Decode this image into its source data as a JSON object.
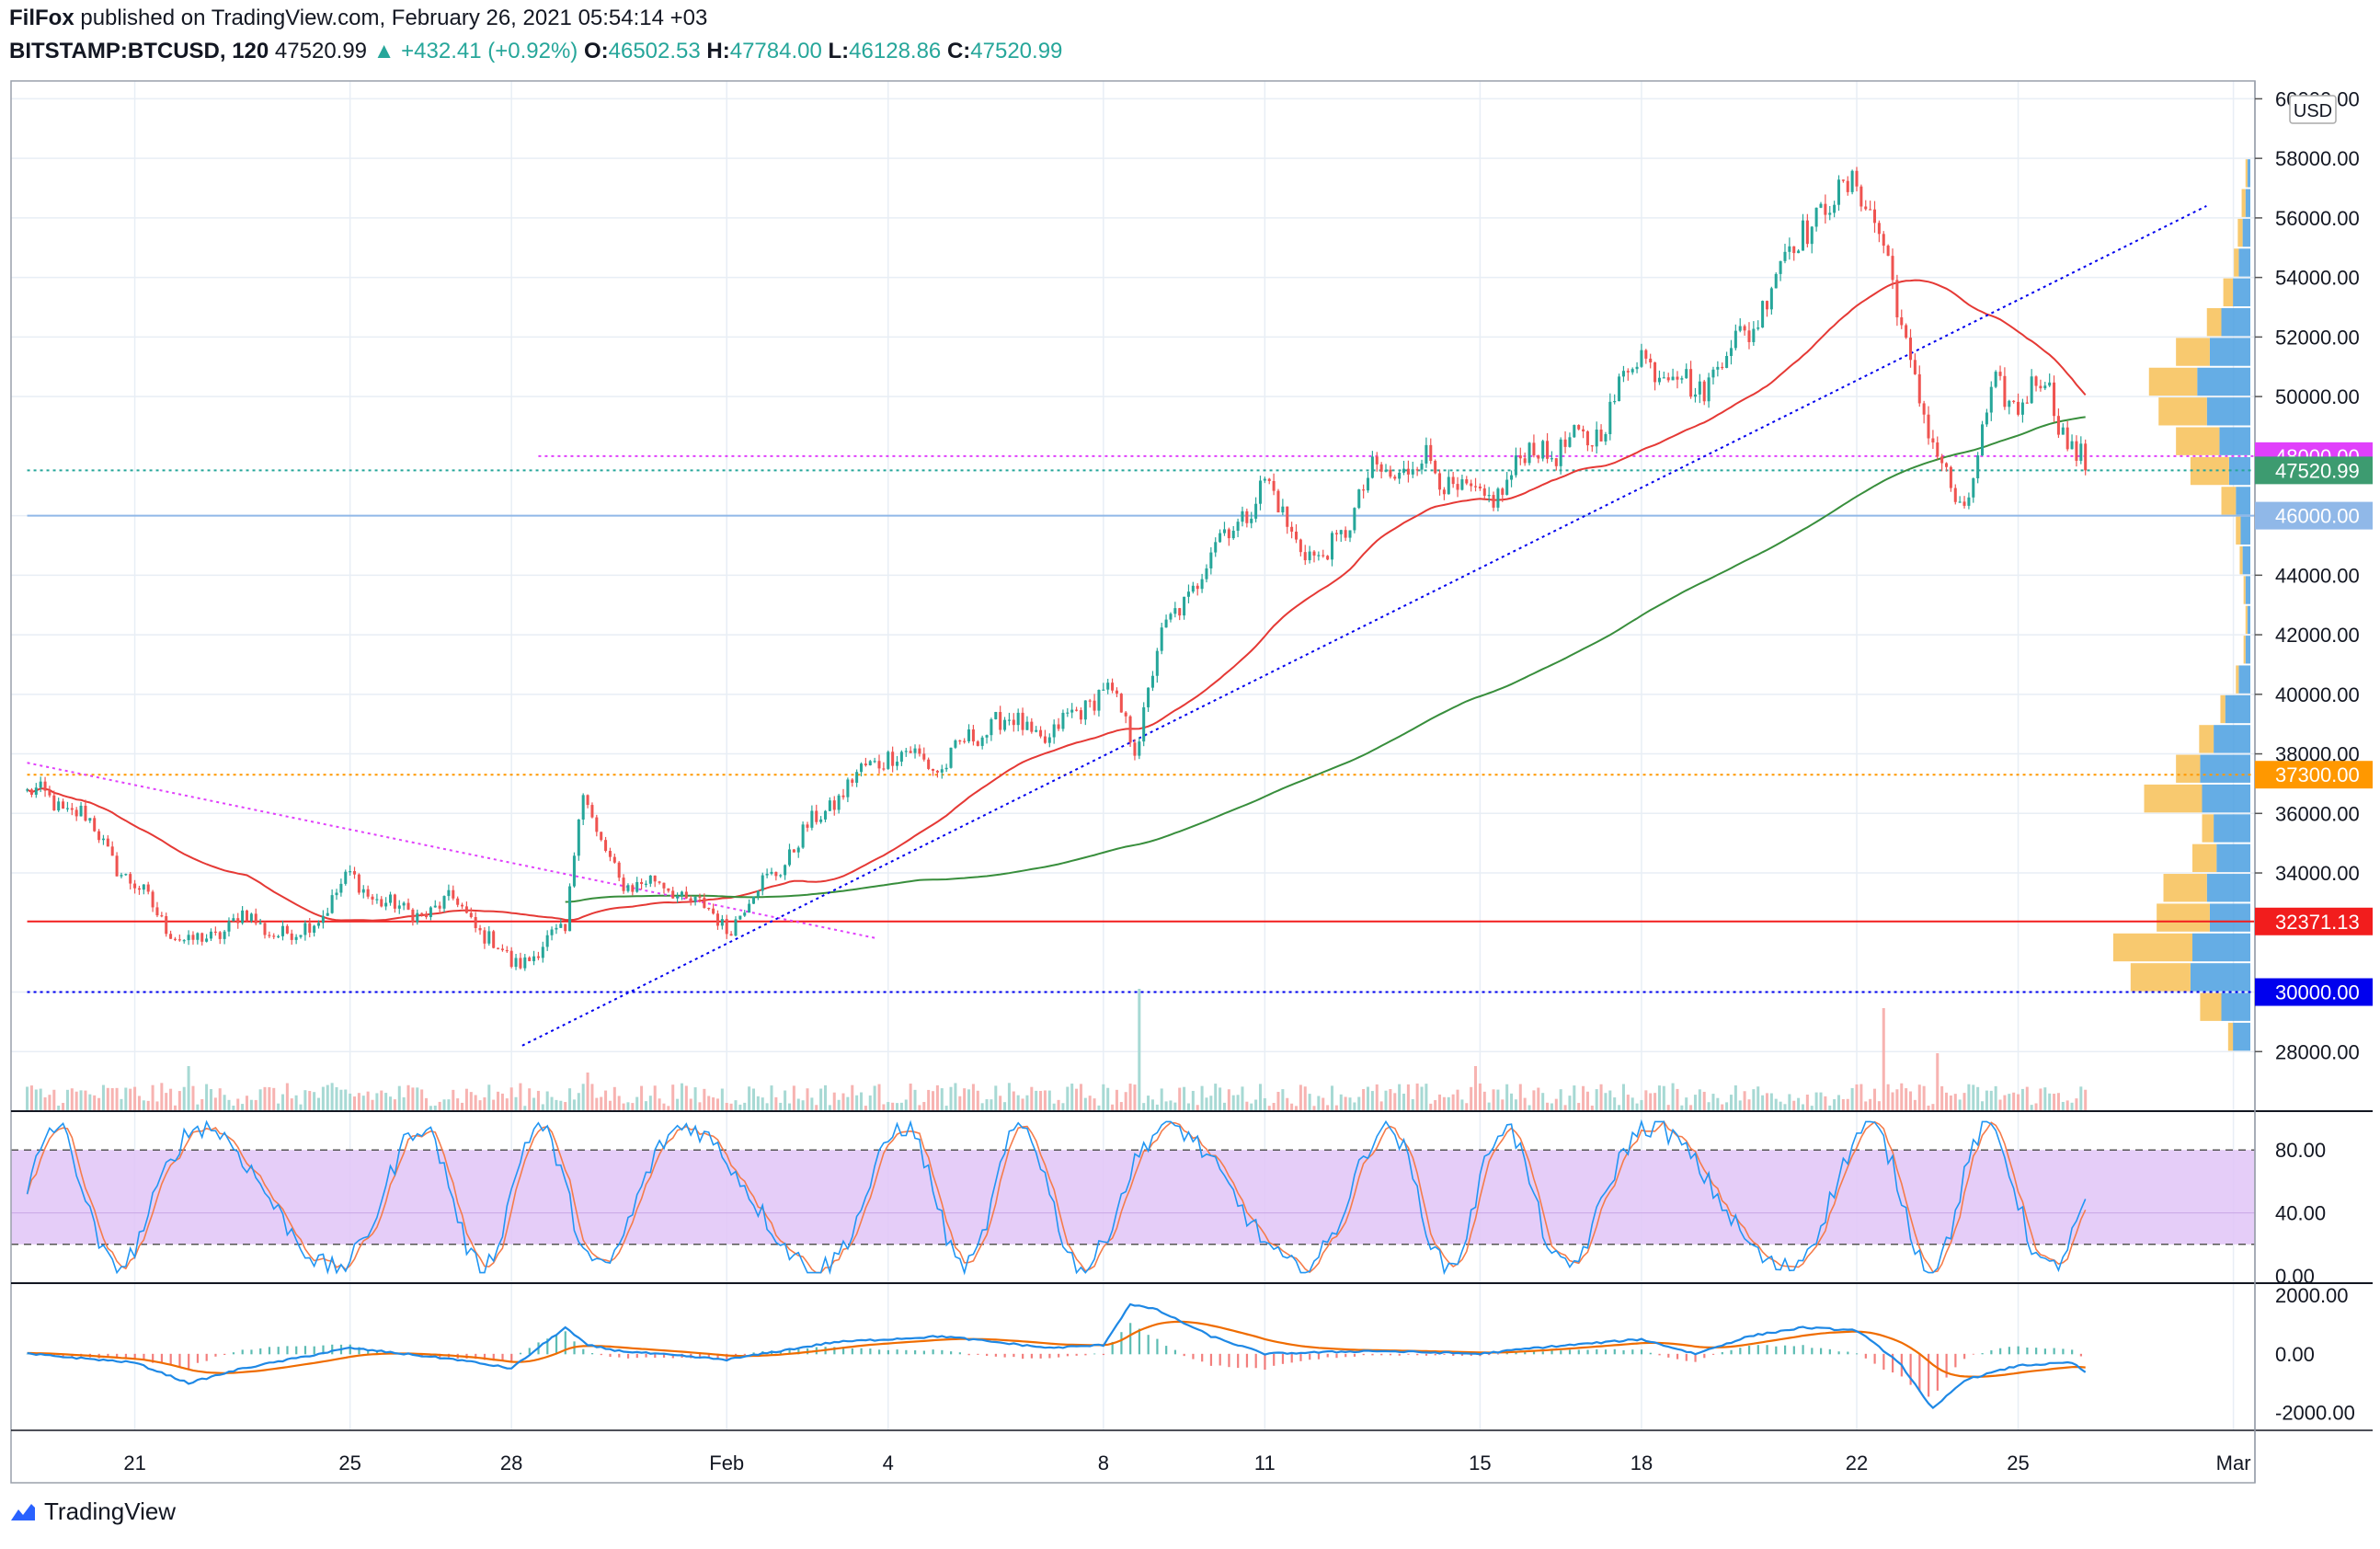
{
  "header": {
    "publisher": "FilFox",
    "published_text": " published on TradingView.com, February 26, 2021 05:54:14 +03",
    "symbol": "BITSTAMP:BTCUSD, 120",
    "last": "47520.99",
    "change": "+432.41 (+0.92%)",
    "o_label": "O:",
    "o": "46502.53",
    "h_label": "H:",
    "h": "47784.00",
    "l_label": "L:",
    "l": "46128.86",
    "c_label": "C:",
    "c": "47520.99"
  },
  "footer": {
    "brand": "TradingView"
  },
  "colors": {
    "up": "#26a69a",
    "down": "#ef5350",
    "ma_red": "#e53935",
    "ma_green": "#388e3c",
    "grid": "#e8eef5",
    "stoch_band": "#e1c4f7",
    "stoch_k": "#2196f3",
    "stoch_d": "#f57c4b",
    "macd_line": "#1e88e5",
    "signal_line": "#ef6c00",
    "label_48000": "#e040fb",
    "label_last": "#3d9b70",
    "label_46000": "#90b8e8",
    "label_37300": "#ff9800",
    "label_32371": "#f21d1d",
    "label_30000": "#0000ee",
    "vp_up": "#4a9fe0",
    "vp_down": "#f7c35f"
  },
  "chart_data": {
    "type": "candlestick",
    "currency_badge": "USD",
    "price_axis": {
      "ticks": [
        "60000.00",
        "58000.00",
        "56000.00",
        "54000.00",
        "52000.00",
        "50000.00",
        "46000.00",
        "44000.00",
        "42000.00",
        "40000.00",
        "38000.00",
        "36000.00",
        "34000.00",
        "30000.00",
        "28000.00"
      ],
      "tick_values": [
        60000,
        58000,
        56000,
        54000,
        52000,
        50000,
        46000,
        44000,
        42000,
        40000,
        38000,
        36000,
        34000,
        30000,
        28000
      ],
      "range": [
        26000,
        60600
      ]
    },
    "price_labels": [
      {
        "text": "48000.00",
        "value": 48000,
        "color": "label_48000"
      },
      {
        "text": "47520.99",
        "value": 47520.99,
        "color": "label_last"
      },
      {
        "text": "46000.00",
        "value": 46000,
        "color": "label_46000"
      },
      {
        "text": "37300.00",
        "value": 37300,
        "color": "label_37300"
      },
      {
        "text": "32371.13",
        "value": 32371.13,
        "color": "label_32371"
      },
      {
        "text": "30000.00",
        "value": 30000,
        "color": "label_30000"
      }
    ],
    "horizontal_levels": [
      {
        "value": 48000,
        "style": "dotted",
        "color": "label_48000",
        "from_day": 9.5
      },
      {
        "value": 47520.99,
        "style": "dotted",
        "color": "up",
        "from_day": 0
      },
      {
        "value": 46000,
        "style": "solid",
        "color": "label_46000",
        "from_day": 0
      },
      {
        "value": 37300,
        "style": "dotted",
        "color": "label_37300",
        "from_day": 0
      },
      {
        "value": 32371.13,
        "style": "solid",
        "color": "label_32371",
        "from_day": 0
      },
      {
        "value": 30000,
        "style": "dotted",
        "color": "label_30000",
        "from_day": 0
      }
    ],
    "trend_lines": [
      {
        "from": [
          0,
          37700
        ],
        "to": [
          15.8,
          31800
        ],
        "color": "label_48000"
      },
      {
        "from": [
          9.2,
          28200
        ],
        "to": [
          40.5,
          56400
        ],
        "color": "label_30000"
      }
    ],
    "time_axis": {
      "labels": [
        "21",
        "25",
        "28",
        "Feb",
        "4",
        "8",
        "11",
        "15",
        "18",
        "22",
        "25",
        "Mar"
      ],
      "label_days": [
        2,
        6,
        9,
        13,
        16,
        20,
        23,
        27,
        30,
        34,
        37,
        41
      ],
      "start": "2021-01-19",
      "end": "2021-03-02"
    },
    "close_anchors_day": [
      0,
      1,
      2,
      3,
      4,
      5,
      6,
      7,
      8,
      9,
      10,
      10.3,
      10.6,
      11,
      12,
      13,
      14,
      15,
      16,
      17,
      18,
      19,
      20,
      20.6,
      21,
      22,
      23,
      24,
      25,
      26,
      27,
      28,
      29,
      30,
      31,
      32,
      33,
      33.6,
      34,
      34.6,
      35,
      35.4,
      36,
      36.6,
      37,
      37.5,
      38,
      38.3
    ],
    "close_anchors": [
      36700,
      36000,
      33500,
      31500,
      32500,
      31800,
      33800,
      32600,
      33000,
      30900,
      32000,
      37200,
      35000,
      33800,
      33500,
      32200,
      34300,
      36500,
      38100,
      37600,
      39200,
      38500,
      40300,
      38300,
      41500,
      44800,
      47000,
      44200,
      47300,
      47800,
      46300,
      48200,
      48400,
      51500,
      50200,
      52300,
      55800,
      56400,
      57600,
      54200,
      51300,
      48200,
      46200,
      50400,
      49800,
      50500,
      48300,
      47521
    ],
    "volume_spikes": [
      {
        "day": 3.0,
        "height": 0.35
      },
      {
        "day": 10.4,
        "height": 0.3
      },
      {
        "day": 20.7,
        "height": 0.95
      },
      {
        "day": 34.5,
        "height": 0.8
      },
      {
        "day": 35.5,
        "height": 0.45
      },
      {
        "day": 26.9,
        "height": 0.35
      }
    ],
    "volume_profile": {
      "bins_from": 28500,
      "bins_to": 58500,
      "step": 1000,
      "buy": [
        0.18,
        0.3,
        0.62,
        0.6,
        0.42,
        0.45,
        0.35,
        0.38,
        0.5,
        0.52,
        0.38,
        0.26,
        0.12,
        0.05,
        0.03,
        0.05,
        0.08,
        0.1,
        0.15,
        0.22,
        0.32,
        0.45,
        0.55,
        0.42,
        0.3,
        0.18,
        0.12,
        0.08,
        0.05,
        0.03
      ],
      "sell": [
        0.05,
        0.22,
        0.62,
        0.82,
        0.55,
        0.45,
        0.25,
        0.12,
        0.6,
        0.25,
        0.15,
        0.05,
        0.03,
        0.02,
        0.02,
        0.02,
        0.03,
        0.05,
        0.15,
        0.4,
        0.45,
        0.5,
        0.5,
        0.35,
        0.15,
        0.1,
        0.05,
        0.05,
        0.04,
        0.02
      ]
    },
    "stochastic": {
      "ticks": [
        "80.00",
        "40.00",
        "0.00"
      ],
      "tick_values": [
        80,
        40,
        0
      ],
      "upper_band": 80,
      "lower_band": 20,
      "range": [
        0,
        100
      ]
    },
    "macd": {
      "ticks": [
        "2000.00",
        "0.00",
        "-2000.00"
      ],
      "tick_values": [
        2000,
        0,
        -2000
      ],
      "range": [
        -2300,
        2100
      ],
      "anchor_days": [
        0,
        2,
        3,
        4,
        6,
        8,
        9,
        10,
        10.4,
        11,
        13,
        15,
        17,
        19,
        20,
        20.5,
        21,
        22,
        23,
        25,
        27,
        28,
        30,
        31,
        32,
        33,
        34,
        34.8,
        35.4,
        36,
        37,
        38,
        38.3
      ],
      "macd_values": [
        0,
        -300,
        -1000,
        -500,
        200,
        -200,
        -500,
        900,
        300,
        100,
        -200,
        400,
        600,
        200,
        300,
        1700,
        1500,
        600,
        0,
        100,
        0,
        200,
        500,
        0,
        600,
        900,
        800,
        -300,
        -1900,
        -900,
        -400,
        -300,
        -700
      ]
    }
  }
}
